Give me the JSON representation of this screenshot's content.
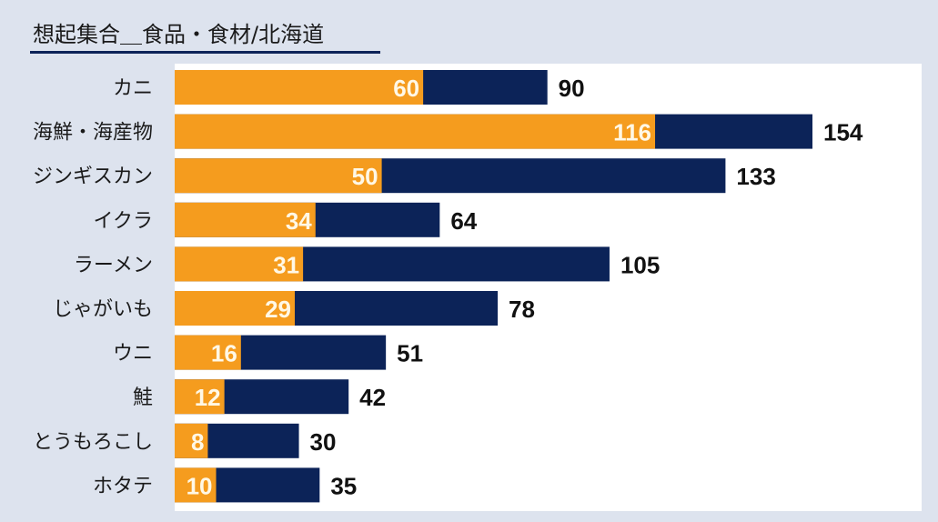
{
  "chart_data": {
    "type": "bar",
    "stacked_overlay": true,
    "title": "想起集合＿食品・食材/北海道",
    "categories": [
      "カニ",
      "海鮮・海産物",
      "ジンギスカン",
      "イクラ",
      "ラーメン",
      "じゃがいも",
      "ウニ",
      "鮭",
      "とうもろこし",
      "ホタテ"
    ],
    "series": [
      {
        "name": "total",
        "color": "#0c2358",
        "values": [
          90,
          154,
          133,
          64,
          105,
          78,
          51,
          42,
          30,
          35
        ]
      },
      {
        "name": "sub",
        "color": "#f59c1e",
        "values": [
          60,
          116,
          50,
          34,
          31,
          29,
          16,
          12,
          8,
          10
        ]
      }
    ],
    "xlim": [
      0,
      180
    ],
    "grid": false,
    "orientation": "horizontal"
  }
}
